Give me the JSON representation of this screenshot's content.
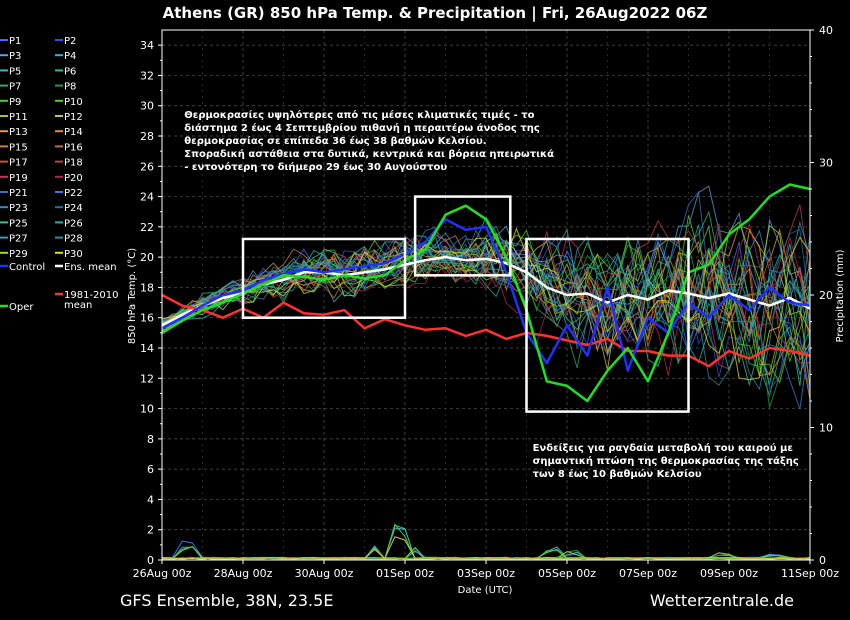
{
  "chart_data": {
    "type": "line",
    "title": "Athens  (GR)  850 hPa Temp. & Precipitation | Fri, 26Aug2022 06Z",
    "xlabel": "Date (UTC)",
    "ylabel": "850 hPa Temp. (°C)",
    "y2label": "Precipitation (mm)",
    "ylim": [
      0,
      35
    ],
    "y2lim": [
      0,
      40
    ],
    "yticks": [
      "0",
      "2",
      "4",
      "6",
      "8",
      "10",
      "12",
      "14",
      "16",
      "18",
      "20",
      "22",
      "24",
      "26",
      "28",
      "30",
      "32",
      "34"
    ],
    "y2ticks": [
      "0",
      "10",
      "20",
      "30",
      "40"
    ],
    "xticks": [
      "26Aug 00z",
      "28Aug 00z",
      "30Aug 00z",
      "01Sep 00z",
      "03Sep 00z",
      "05Sep 00z",
      "07Sep 00z",
      "09Sep 00z",
      "11Sep 00z"
    ],
    "x_start_day": 0,
    "x_end_day": 16,
    "grid": true,
    "legend_position": "left",
    "legend": [
      {
        "label": "P1",
        "color": "#4169ff"
      },
      {
        "label": "P2",
        "color": "#3050e0"
      },
      {
        "label": "P3",
        "color": "#5aa0e0"
      },
      {
        "label": "P4",
        "color": "#40b0d0"
      },
      {
        "label": "P5",
        "color": "#20c0c0"
      },
      {
        "label": "P6",
        "color": "#20c080"
      },
      {
        "label": "P7",
        "color": "#30b060"
      },
      {
        "label": "P8",
        "color": "#20a040"
      },
      {
        "label": "P9",
        "color": "#40d040"
      },
      {
        "label": "P10",
        "color": "#60d020"
      },
      {
        "label": "P11",
        "color": "#b0c020"
      },
      {
        "label": "P12",
        "color": "#d0c040"
      },
      {
        "label": "P13",
        "color": "#e0a030"
      },
      {
        "label": "P14",
        "color": "#e09020"
      },
      {
        "label": "P15",
        "color": "#d08040"
      },
      {
        "label": "P16",
        "color": "#c07030"
      },
      {
        "label": "P17",
        "color": "#d05030"
      },
      {
        "label": "P18",
        "color": "#c04040"
      },
      {
        "label": "P19",
        "color": "#d03060"
      },
      {
        "label": "P20",
        "color": "#c02050"
      },
      {
        "label": "P21",
        "color": "#4070c0"
      },
      {
        "label": "P22",
        "color": "#3080e0"
      },
      {
        "label": "P23",
        "color": "#3090c0"
      },
      {
        "label": "P24",
        "color": "#2070a0"
      },
      {
        "label": "P25",
        "color": "#40c090"
      },
      {
        "label": "P26",
        "color": "#20b0a0"
      },
      {
        "label": "P27",
        "color": "#30a0b0"
      },
      {
        "label": "P28",
        "color": "#3090a0"
      },
      {
        "label": "P29",
        "color": "#a0e020"
      },
      {
        "label": "P30",
        "color": "#e0e020"
      },
      {
        "label": "Control",
        "color": "#2030ff"
      },
      {
        "label": "Ens. mean",
        "color": "#ffffff"
      },
      {
        "label": "Oper",
        "color": "#20e020"
      },
      {
        "label": "1981-2010\nmean",
        "color": "#ff3030"
      }
    ],
    "series": [
      {
        "name": "Ens. mean",
        "color": "#ffffff",
        "width": 2.5,
        "x": [
          0,
          0.5,
          1,
          1.5,
          2,
          2.5,
          3,
          3.5,
          4,
          4.5,
          5,
          5.5,
          6,
          6.5,
          7,
          7.5,
          8,
          8.5,
          9,
          9.5,
          10,
          10.5,
          11,
          11.5,
          12,
          12.5,
          13,
          13.5,
          14,
          14.5,
          15,
          15.5,
          16
        ],
        "y": [
          15.5,
          16.2,
          16.8,
          17.3,
          17.6,
          18.2,
          18.5,
          19.0,
          19.0,
          18.8,
          19.0,
          19.2,
          19.5,
          19.8,
          20.0,
          19.8,
          19.9,
          19.6,
          19.0,
          18.0,
          17.5,
          17.6,
          17.0,
          17.5,
          17.2,
          17.8,
          17.6,
          17.3,
          17.6,
          17.2,
          16.8,
          17.3,
          16.6
        ]
      },
      {
        "name": "Control",
        "color": "#2030ff",
        "width": 2.5,
        "x": [
          0,
          0.5,
          1,
          1.5,
          2,
          2.5,
          3,
          3.5,
          4,
          4.5,
          5,
          5.5,
          6,
          6.5,
          7,
          7.5,
          8,
          8.5,
          9,
          9.5,
          10,
          10.5,
          11,
          11.5,
          12,
          12.5,
          13,
          13.5,
          14,
          14.5,
          15,
          15.5,
          16
        ],
        "y": [
          15.3,
          16.0,
          16.8,
          17.5,
          17.8,
          18.5,
          18.9,
          19.2,
          19.0,
          19.2,
          19.4,
          19.6,
          20.2,
          21.0,
          22.5,
          21.8,
          22.0,
          19.0,
          15.0,
          13.0,
          15.5,
          13.5,
          18.0,
          12.5,
          16.0,
          15.0,
          17.0,
          16.0,
          17.5,
          16.5,
          18.0,
          17.0,
          16.8
        ]
      },
      {
        "name": "Oper",
        "color": "#20e020",
        "width": 2.5,
        "x": [
          0,
          0.5,
          1,
          1.5,
          2,
          2.5,
          3,
          3.5,
          4,
          4.5,
          5,
          5.5,
          6,
          6.5,
          7,
          7.5,
          8,
          8.5,
          9,
          9.5,
          10,
          10.5,
          11,
          11.5,
          12,
          12.5,
          13,
          13.5,
          14,
          14.5,
          15,
          15.5,
          16
        ],
        "y": [
          15.0,
          15.8,
          16.5,
          17.0,
          17.6,
          18.2,
          18.8,
          18.7,
          18.5,
          18.8,
          18.6,
          18.8,
          19.8,
          20.5,
          22.8,
          23.4,
          22.5,
          20.0,
          16.5,
          11.8,
          11.5,
          10.5,
          12.5,
          14.0,
          11.8,
          15.0,
          19.0,
          19.5,
          21.5,
          22.5,
          24.0,
          24.8,
          24.5
        ]
      },
      {
        "name": "1981-2010 mean",
        "color": "#ff3030",
        "width": 2.5,
        "x": [
          0,
          0.5,
          1,
          1.5,
          2,
          2.5,
          3,
          3.5,
          4,
          4.5,
          5,
          5.5,
          6,
          6.5,
          7,
          7.5,
          8,
          8.5,
          9,
          9.5,
          10,
          10.5,
          11,
          11.5,
          12,
          12.5,
          13,
          13.5,
          14,
          14.5,
          15,
          15.5,
          16
        ],
        "y": [
          17.5,
          16.8,
          16.5,
          16.0,
          16.6,
          16.0,
          17.0,
          16.3,
          16.2,
          16.5,
          15.3,
          15.9,
          15.5,
          15.2,
          15.3,
          14.8,
          15.2,
          14.6,
          15.0,
          14.8,
          14.5,
          14.2,
          14.6,
          13.8,
          13.8,
          13.5,
          13.5,
          12.8,
          13.8,
          13.3,
          14.0,
          13.8,
          13.5
        ]
      }
    ],
    "annotations": [
      {
        "text": "Θερμοκρασίες υψηλότερες από τις μέσες κλιματικές τιμές - το\nδιάστημα 2 έως 4 Σεπτεμβρίου πιθανή η περαιτέρω άνοδος της\nθερμοκρασίας σε επίπεδα 36 έως 38 βαθμών Κελσίου.\nΣποραδική αστάθεια στα δυτικά, κεντρικά και βόρεια ηπειρωτικά\n- εντονότερη το διήμερο 29 έως 30 Αυγούστου",
        "x_day": 0.55,
        "y_temp": 29.2
      },
      {
        "text": "Ενδείξεις για ραγδαία μεταβολή του καιρού με\nσημαντική πτώση της θερμοκρασίας της τάξης\nτων 8 έως 10 βαθμών Κελσίου",
        "x_day": 9.15,
        "y_temp": 7.2
      }
    ],
    "highlight_boxes": [
      {
        "x": [
          2.0,
          6.0
        ],
        "y": [
          16.0,
          21.2
        ]
      },
      {
        "x": [
          6.25,
          8.6
        ],
        "y": [
          18.8,
          24.0
        ]
      },
      {
        "x": [
          9.0,
          13.0
        ],
        "y": [
          9.8,
          21.2
        ]
      }
    ]
  },
  "footer": {
    "left": "GFS Ensemble, 38N, 23.5E",
    "right": "Wetterzentrale.de"
  }
}
